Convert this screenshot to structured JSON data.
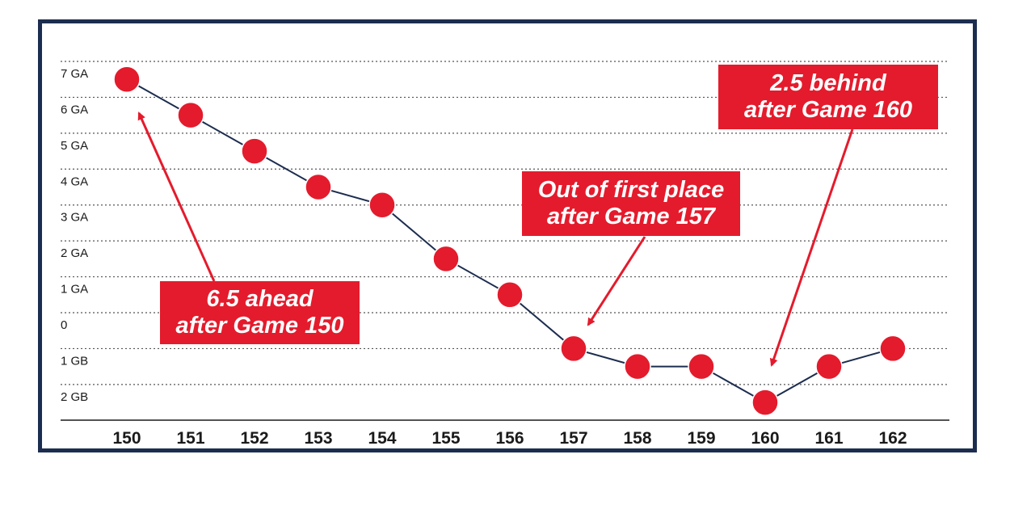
{
  "chart_data": {
    "type": "line",
    "categories": [
      "150",
      "151",
      "152",
      "153",
      "154",
      "155",
      "156",
      "157",
      "158",
      "159",
      "160",
      "161",
      "162"
    ],
    "values": [
      6.5,
      5.5,
      4.5,
      3.5,
      3.0,
      1.5,
      0.5,
      -1.0,
      -1.5,
      -1.5,
      -2.5,
      -1.5,
      -1.0
    ],
    "y_ticks": [
      {
        "value": 7,
        "label": "7 GA"
      },
      {
        "value": 6,
        "label": "6 GA"
      },
      {
        "value": 5,
        "label": "5 GA"
      },
      {
        "value": 4,
        "label": "4 GA"
      },
      {
        "value": 3,
        "label": "3 GA"
      },
      {
        "value": 2,
        "label": "2 GA"
      },
      {
        "value": 1,
        "label": "1 GA"
      },
      {
        "value": 0,
        "label": "0"
      },
      {
        "value": -1,
        "label": "1 GB"
      },
      {
        "value": -2,
        "label": "2 GB"
      }
    ],
    "ylim": [
      -3,
      8
    ],
    "grid": true,
    "line_color": "#1c2d4f",
    "marker_color": "#e41b2c",
    "annotations": [
      {
        "lines": [
          "6.5 ahead",
          "after Game 150"
        ],
        "target_category": "150",
        "target_value": 6.5
      },
      {
        "lines": [
          "Out of first place",
          "after Game 157"
        ],
        "target_category": "157",
        "target_value": -1.0
      },
      {
        "lines": [
          "2.5 behind",
          "after Game 160"
        ],
        "target_category": "160",
        "target_value": -2.5
      }
    ]
  },
  "colors": {
    "frame": "#1c2d4f",
    "accent": "#e41b2c",
    "grid": "#555555"
  }
}
